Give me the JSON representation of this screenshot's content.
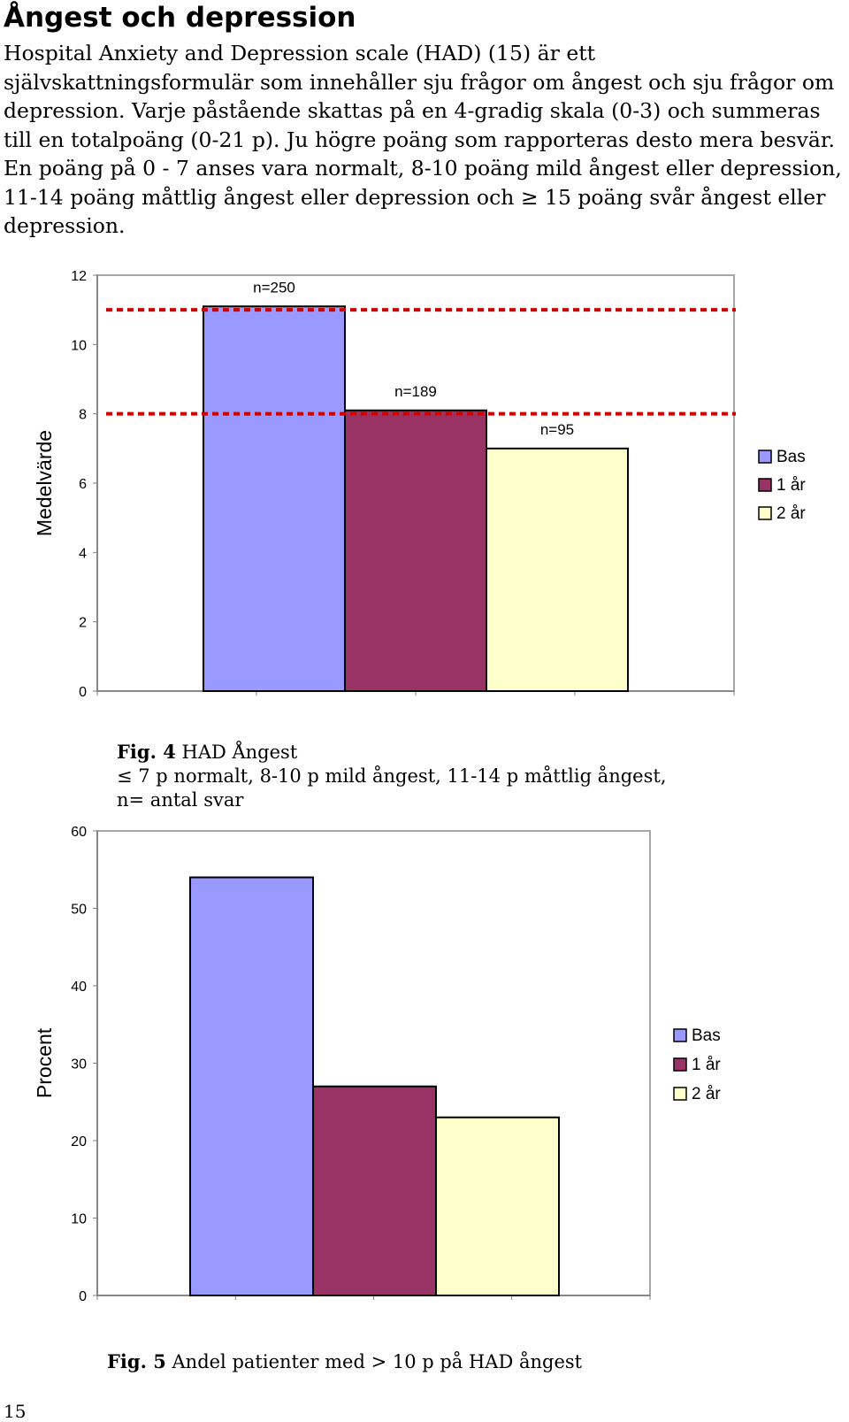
{
  "heading": "Ångest och depression",
  "paragraph": "Hospital Anxiety and Depression scale (HAD) (15) är ett självskattningsformulär som innehåller sju frågor om ångest och sju frågor om depression. Varje påstående skattas på en 4-gradig skala (0-3) och summeras till en totalpoäng (0-21 p). Ju högre poäng som rapporteras desto mera besvär. En poäng på 0 - 7 anses vara normalt, 8-10 poäng mild ångest eller depression, 11-14 poäng måttlig ångest eller depression och ≥ 15 poäng svår ångest eller depression.",
  "colors": {
    "bas": "#9999ff",
    "one_year": "#993366",
    "two_year": "#ffffcc",
    "reference_line": "#cc0000"
  },
  "chart_data": [
    {
      "type": "bar",
      "categories": [
        "Bas",
        "1 år",
        "2 år"
      ],
      "values": [
        11.1,
        8.1,
        7.0
      ],
      "data_labels": [
        "n=250",
        "n=189",
        "n=95"
      ],
      "ylabel": "Medelvärde",
      "yticks": [
        "0",
        "2",
        "4",
        "6",
        "8",
        "10",
        "12"
      ],
      "ylim": [
        0,
        12
      ],
      "reference_lines": [
        8,
        11
      ],
      "legend": [
        "Bas",
        "1 år",
        "2 år"
      ],
      "legend_position": "right",
      "grid": false
    },
    {
      "type": "bar",
      "categories": [
        "Bas",
        "1 år",
        "2 år"
      ],
      "values": [
        54,
        27,
        23
      ],
      "ylabel": "Procent",
      "yticks": [
        "0",
        "10",
        "20",
        "30",
        "40",
        "50",
        "60"
      ],
      "ylim": [
        0,
        60
      ],
      "legend": [
        "Bas",
        "1 år",
        "2 år"
      ],
      "legend_position": "right",
      "grid": false
    }
  ],
  "captions": {
    "fig4_label": "Fig. 4",
    "fig4_title": "HAD Ångest",
    "fig4_line2": "≤ 7 p normalt, 8-10 p mild ångest, 11-14 p måttlig ångest,",
    "fig4_line3": "n= antal svar",
    "fig5_label": "Fig. 5",
    "fig5_title": "Andel patienter med > 10 p på HAD ångest"
  },
  "page_number": "15"
}
